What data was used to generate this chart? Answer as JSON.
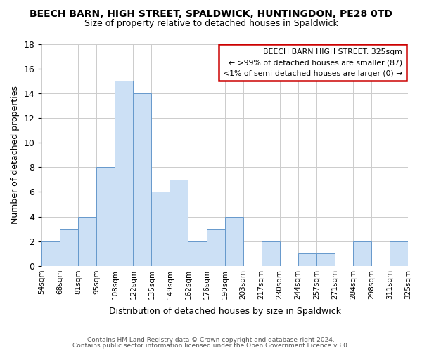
{
  "title": "BEECH BARN, HIGH STREET, SPALDWICK, HUNTINGDON, PE28 0TD",
  "subtitle": "Size of property relative to detached houses in Spaldwick",
  "xlabel": "Distribution of detached houses by size in Spaldwick",
  "ylabel": "Number of detached properties",
  "bar_color": "#cce0f5",
  "bar_edge_color": "#6699cc",
  "tick_labels": [
    "54sqm",
    "68sqm",
    "81sqm",
    "95sqm",
    "108sqm",
    "122sqm",
    "135sqm",
    "149sqm",
    "162sqm",
    "176sqm",
    "190sqm",
    "203sqm",
    "217sqm",
    "230sqm",
    "244sqm",
    "257sqm",
    "271sqm",
    "284sqm",
    "298sqm",
    "311sqm",
    "325sqm"
  ],
  "values": [
    2,
    3,
    4,
    8,
    15,
    14,
    6,
    7,
    2,
    3,
    4,
    0,
    2,
    0,
    1,
    1,
    0,
    2,
    0,
    2
  ],
  "ylim": [
    0,
    18
  ],
  "yticks": [
    0,
    2,
    4,
    6,
    8,
    10,
    12,
    14,
    16,
    18
  ],
  "legend_title": "BEECH BARN HIGH STREET: 325sqm",
  "legend_line1": "← >99% of detached houses are smaller (87)",
  "legend_line2": "<1% of semi-detached houses are larger (0) →",
  "legend_box_color": "#ffffff",
  "legend_box_edge": "#cc0000",
  "footer1": "Contains HM Land Registry data © Crown copyright and database right 2024.",
  "footer2": "Contains public sector information licensed under the Open Government Licence v3.0."
}
